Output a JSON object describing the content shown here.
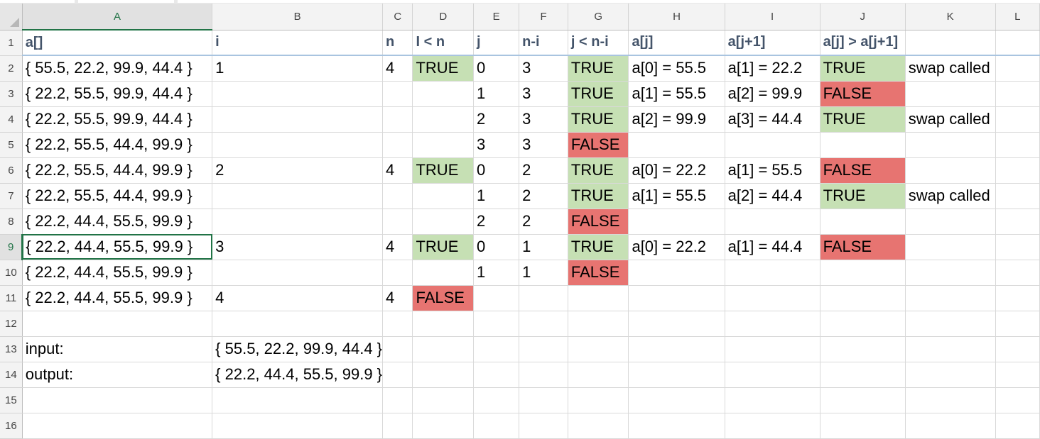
{
  "columns": [
    "A",
    "B",
    "C",
    "D",
    "E",
    "F",
    "G",
    "H",
    "I",
    "J",
    "K",
    "L"
  ],
  "selected_column": "A",
  "selected_row": "9",
  "colors": {
    "true_fill": "#c6e0b4",
    "false_fill": "#e77471",
    "selection": "#217346"
  },
  "rows": [
    {
      "n": "1",
      "cells": [
        "a[]",
        "i",
        "n",
        "I < n",
        "j",
        "n-i",
        "j < n-i",
        "a[j]",
        "a[j+1]",
        "a[j] > a[j+1]",
        "",
        ""
      ]
    },
    {
      "n": "2",
      "cells": [
        "{ 55.5, 22.2, 99.9, 44.4 }",
        "1",
        "4",
        "TRUE",
        "0",
        "3",
        "TRUE",
        "a[0] = 55.5",
        "a[1] = 22.2",
        "TRUE",
        "swap called",
        ""
      ]
    },
    {
      "n": "3",
      "cells": [
        "{ 22.2, 55.5, 99.9, 44.4 }",
        "",
        "",
        "",
        "1",
        "3",
        "TRUE",
        "a[1] = 55.5",
        "a[2] = 99.9",
        "FALSE",
        "",
        ""
      ]
    },
    {
      "n": "4",
      "cells": [
        "{ 22.2, 55.5, 99.9, 44.4 }",
        "",
        "",
        "",
        "2",
        "3",
        "TRUE",
        "a[2] = 99.9",
        "a[3] = 44.4",
        "TRUE",
        "swap called",
        ""
      ]
    },
    {
      "n": "5",
      "cells": [
        "{ 22.2, 55.5, 44.4, 99.9 }",
        "",
        "",
        "",
        "3",
        "3",
        "FALSE",
        "",
        "",
        "",
        "",
        ""
      ]
    },
    {
      "n": "6",
      "cells": [
        "{ 22.2, 55.5, 44.4, 99.9 }",
        "2",
        "4",
        "TRUE",
        "0",
        "2",
        "TRUE",
        "a[0] = 22.2",
        "a[1] = 55.5",
        "FALSE",
        "",
        ""
      ]
    },
    {
      "n": "7",
      "cells": [
        "{ 22.2, 55.5, 44.4, 99.9 }",
        "",
        "",
        "",
        "1",
        "2",
        "TRUE",
        "a[1] = 55.5",
        "a[2] = 44.4",
        "TRUE",
        "swap called",
        ""
      ]
    },
    {
      "n": "8",
      "cells": [
        "{ 22.2, 44.4, 55.5, 99.9 }",
        "",
        "",
        "",
        "2",
        "2",
        "FALSE",
        "",
        "",
        "",
        "",
        ""
      ]
    },
    {
      "n": "9",
      "cells": [
        "{ 22.2, 44.4, 55.5, 99.9 }",
        "3",
        "4",
        "TRUE",
        "0",
        "1",
        "TRUE",
        "a[0] = 22.2",
        "a[1] = 44.4",
        "FALSE",
        "",
        ""
      ]
    },
    {
      "n": "10",
      "cells": [
        "{ 22.2, 44.4, 55.5, 99.9 }",
        "",
        "",
        "",
        "1",
        "1",
        "FALSE",
        "",
        "",
        "",
        "",
        ""
      ]
    },
    {
      "n": "11",
      "cells": [
        "{ 22.2, 44.4, 55.5, 99.9 }",
        "4",
        "4",
        "FALSE",
        "",
        "",
        "",
        "",
        "",
        "",
        "",
        ""
      ]
    },
    {
      "n": "12",
      "cells": [
        "",
        "",
        "",
        "",
        "",
        "",
        "",
        "",
        "",
        "",
        "",
        ""
      ]
    },
    {
      "n": "13",
      "cells": [
        "input:",
        "{ 55.5, 22.2, 99.9, 44.4 }",
        "",
        "",
        "",
        "",
        "",
        "",
        "",
        "",
        "",
        ""
      ]
    },
    {
      "n": "14",
      "cells": [
        "output:",
        "{ 22.2, 44.4, 55.5, 99.9 }",
        "",
        "",
        "",
        "",
        "",
        "",
        "",
        "",
        "",
        ""
      ]
    },
    {
      "n": "15",
      "cells": [
        "",
        "",
        "",
        "",
        "",
        "",
        "",
        "",
        "",
        "",
        "",
        ""
      ]
    },
    {
      "n": "16",
      "cells": [
        "",
        "",
        "",
        "",
        "",
        "",
        "",
        "",
        "",
        "",
        "",
        ""
      ]
    }
  ]
}
